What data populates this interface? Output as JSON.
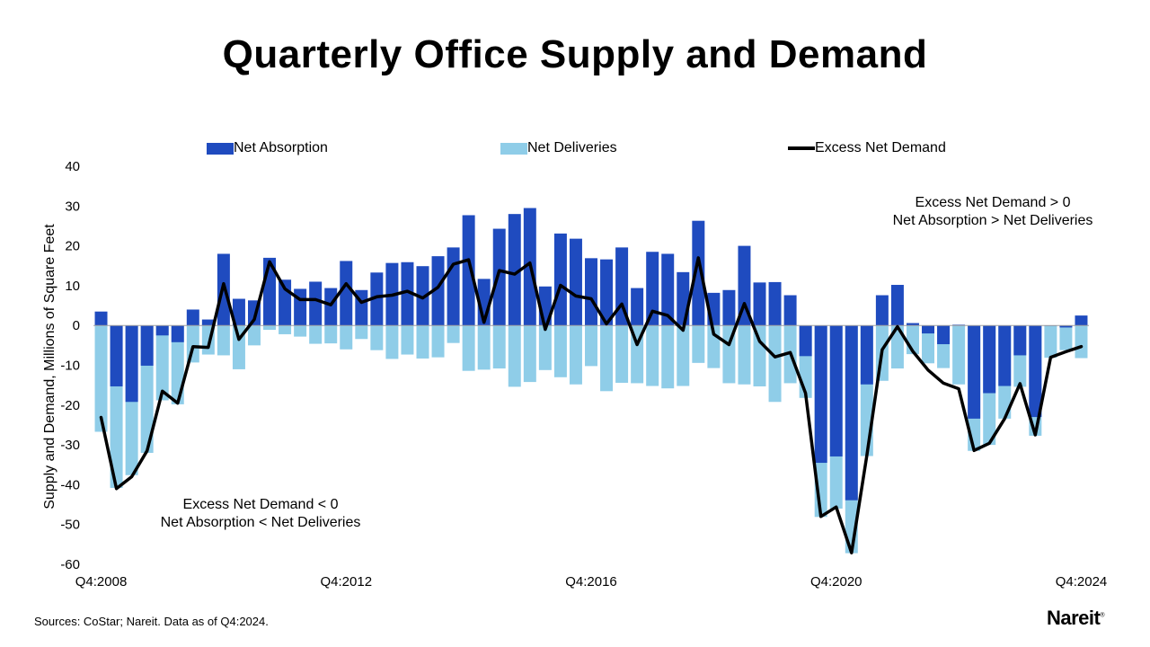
{
  "chart_data": {
    "type": "bar",
    "title": "Quarterly Office Supply and Demand",
    "ylabel": "Supply and Demand, Millions of Square Feet",
    "xlabel": "",
    "ylim": [
      -60,
      40
    ],
    "yticks": [
      40,
      30,
      20,
      10,
      0,
      -10,
      -20,
      -30,
      -40,
      -50,
      -60
    ],
    "xtick_labels": [
      {
        "label": "Q4:2008",
        "index": 0
      },
      {
        "label": "Q4:2012",
        "index": 16
      },
      {
        "label": "Q4:2016",
        "index": 32
      },
      {
        "label": "Q4:2020",
        "index": 48
      },
      {
        "label": "Q4:2024",
        "index": 64
      }
    ],
    "series": [
      {
        "name": "Net Absorption",
        "color": "#1f4bbf",
        "values": [
          3.5,
          -15.3,
          -19.2,
          -10.1,
          -2.5,
          -4.2,
          4,
          1.5,
          18,
          6.7,
          6.3,
          17,
          11.5,
          9.2,
          11,
          9.4,
          16.2,
          8.9,
          13.3,
          15.7,
          15.9,
          14.9,
          17.4,
          19.6,
          27.7,
          11.7,
          24.3,
          28,
          29.5,
          9.8,
          23.1,
          21.8,
          16.9,
          16.6,
          19.6,
          9.4,
          18.5,
          18,
          13.4,
          26.3,
          8.2,
          8.9,
          20,
          10.8,
          10.9,
          7.6,
          -7.7,
          -34.5,
          -32.9,
          -43.9,
          -14.8,
          7.6,
          10.2,
          0.6,
          -2,
          -4.7,
          0.2,
          -23.4,
          -17,
          -15.2,
          -7.5,
          -23,
          0,
          -0.5,
          2.5
        ]
      },
      {
        "name": "Net Deliveries",
        "color": "#8fcde8",
        "values": [
          -26.7,
          -40.8,
          -37.6,
          -32,
          -18.8,
          -19.8,
          -9.3,
          -7.3,
          -7.5,
          -11,
          -5,
          -1.1,
          -2.2,
          -2.8,
          -4.6,
          -4.5,
          -6,
          -3.4,
          -6.2,
          -8.4,
          -7.3,
          -8.3,
          -8,
          -4.4,
          -11.4,
          -11.1,
          -10.8,
          -15.4,
          -14.2,
          -11.2,
          -13,
          -14.8,
          -10.2,
          -16.5,
          -14.4,
          -14.5,
          -15.2,
          -15.8,
          -15.2,
          -9.4,
          -10.7,
          -14.5,
          -14.8,
          -15.3,
          -19.2,
          -14.5,
          -18.2,
          -48.1,
          -46,
          -57.2,
          -32.8,
          -13.9,
          -10.8,
          -7.2,
          -9.5,
          -10.7,
          -14.8,
          -31.5,
          -30,
          -23.4,
          -15.4,
          -27.7,
          -8.1,
          -6.2,
          -8.2
        ]
      },
      {
        "name": "Excess Net Demand",
        "color": "#000000",
        "type": "line",
        "values": [
          -23.1,
          -41,
          -38,
          -31.5,
          -16.5,
          -19.5,
          -5.3,
          -5.5,
          10.5,
          -3.5,
          1.5,
          16,
          9.2,
          6.5,
          6.5,
          5.2,
          10.5,
          5.8,
          7.2,
          7.6,
          8.6,
          6.9,
          9.6,
          15.4,
          16.5,
          0.8,
          13.8,
          12.9,
          15.7,
          -1,
          10.1,
          7.4,
          6.7,
          0.4,
          5.4,
          -4.8,
          3.6,
          2.5,
          -1.2,
          17,
          -2.2,
          -4.8,
          5.5,
          -4,
          -7.9,
          -6.8,
          -17,
          -48,
          -45.6,
          -57.1,
          -32.7,
          -6.1,
          -0.3,
          -6.5,
          -11.2,
          -14.5,
          -15.9,
          -31.4,
          -29.6,
          -23.4,
          -14.6,
          -27.5,
          -8,
          -6.6,
          -5.3
        ]
      }
    ],
    "legend": [
      "Net Absorption",
      "Net Deliveries",
      "Excess Net Demand"
    ],
    "legend_placement": "top"
  },
  "annotations": {
    "upper": {
      "line1": "Excess Net Demand > 0",
      "line2": "Net Absorption > Net Deliveries"
    },
    "lower": {
      "line1": "Excess Net Demand < 0",
      "line2": "Net Absorption < Net Deliveries"
    }
  },
  "footer": {
    "source": "Sources: CoStar; Nareit. Data as of Q4:2024.",
    "logo": "Nareit",
    "logo_mark": "®"
  }
}
